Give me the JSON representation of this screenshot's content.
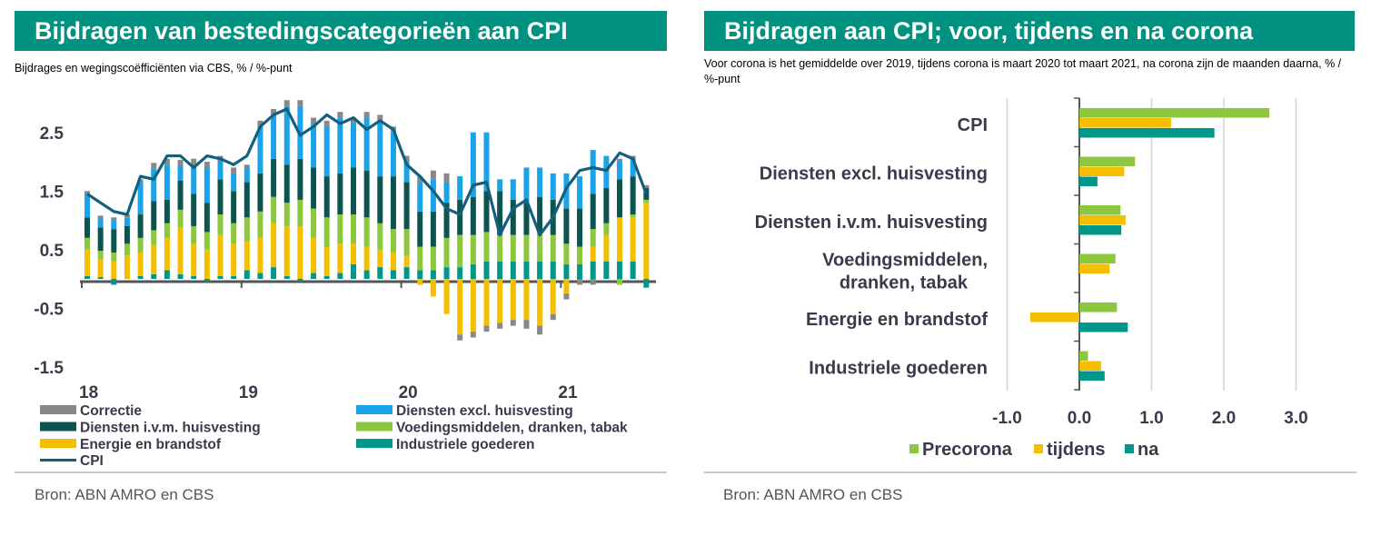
{
  "left": {
    "title": "Bijdragen van bestedingscategorieën aan CPI",
    "subtitle": "Bijdrages en wegingscoëfficiënten via CBS, % / %-punt",
    "source": "Bron: ABN AMRO en CBS"
  },
  "right": {
    "title": "Bijdragen aan CPI; voor, tijdens en na corona",
    "subtitle": "Voor corona is het gemiddelde over 2019, tijdens corona is maart 2020 tot maart 2021, na corona zijn de maanden daarna, % / %-punt",
    "source": "Bron: ABN AMRO en CBS"
  },
  "colors": {
    "brand": "#009180",
    "correctie": "#888888",
    "diensten_excl": "#1aa3e8",
    "diensten_ivm": "#0c5450",
    "voeding": "#8dc63f",
    "energie": "#f5bf00",
    "industrie": "#00968a",
    "cpi": "#135f80"
  },
  "chart_data": [
    {
      "type": "bar",
      "stacked": true,
      "title": "Bijdragen van bestedingscategorieën aan CPI",
      "xlabel": "",
      "ylabel": "",
      "ylim": [
        -1.5,
        2.9
      ],
      "yticks": [
        "2.5",
        "1.5",
        "0.5",
        "-0.5",
        "-1.5"
      ],
      "ytick_values": [
        2.5,
        1.5,
        0.5,
        -0.5,
        -1.5
      ],
      "xtick_labels": [
        "18",
        "19",
        "20",
        "21"
      ],
      "xtick_index": [
        0,
        12,
        24,
        36
      ],
      "x": [
        "jan-18",
        "feb-18",
        "mrt-18",
        "apr-18",
        "mei-18",
        "jun-18",
        "jul-18",
        "aug-18",
        "sep-18",
        "okt-18",
        "nov-18",
        "dec-18",
        "jan-19",
        "feb-19",
        "mrt-19",
        "apr-19",
        "mei-19",
        "jun-19",
        "jul-19",
        "aug-19",
        "sep-19",
        "okt-19",
        "nov-19",
        "dec-19",
        "jan-20",
        "feb-20",
        "mrt-20",
        "apr-20",
        "mei-20",
        "jun-20",
        "jul-20",
        "aug-20",
        "sep-20",
        "okt-20",
        "nov-20",
        "dec-20",
        "jan-21",
        "feb-21",
        "mrt-21",
        "apr-21",
        "mei-21",
        "jun-21",
        "jul-21"
      ],
      "series": [
        {
          "name": "Industriele goederen",
          "key": "industrie",
          "values": [
            0.05,
            0.03,
            -0.1,
            0.0,
            0.05,
            0.08,
            0.15,
            0.08,
            0.05,
            -0.05,
            0.05,
            0.05,
            0.15,
            0.1,
            0.2,
            0.05,
            -0.05,
            0.1,
            0.05,
            0.1,
            0.25,
            0.15,
            0.2,
            0.15,
            0.2,
            0.15,
            0.15,
            0.2,
            0.2,
            0.25,
            0.3,
            0.3,
            0.3,
            0.3,
            0.3,
            0.3,
            0.25,
            0.25,
            0.3,
            0.3,
            0.3,
            0.3,
            -0.15
          ]
        },
        {
          "name": "Energie en brandstof",
          "key": "energie",
          "values": [
            0.45,
            0.3,
            0.3,
            0.4,
            0.4,
            0.5,
            0.55,
            0.8,
            0.55,
            0.5,
            0.7,
            0.55,
            0.5,
            0.6,
            0.75,
            0.85,
            0.9,
            0.6,
            0.5,
            0.5,
            0.35,
            0.4,
            0.3,
            0.3,
            0.2,
            -0.1,
            -0.3,
            -0.6,
            -0.95,
            -0.9,
            -0.8,
            -0.75,
            -0.7,
            -0.7,
            -0.8,
            -0.6,
            -0.25,
            0.0,
            0.25,
            0.45,
            0.75,
            0.75,
            1.3
          ]
        },
        {
          "name": "Voedingsmiddelen, dranken, tabak",
          "key": "voeding",
          "values": [
            0.2,
            0.15,
            0.15,
            0.2,
            0.25,
            0.25,
            0.25,
            0.3,
            0.3,
            0.3,
            0.35,
            0.35,
            0.4,
            0.45,
            0.45,
            0.4,
            0.45,
            0.5,
            0.5,
            0.5,
            0.5,
            0.5,
            0.45,
            0.4,
            0.45,
            0.4,
            0.4,
            0.5,
            0.55,
            0.5,
            0.5,
            0.45,
            0.45,
            0.45,
            0.5,
            0.45,
            0.35,
            0.3,
            0.3,
            0.2,
            -0.1,
            0.05,
            0.05
          ]
        },
        {
          "name": "Diensten i.v.m. huisvesting",
          "key": "diensten_ivm",
          "values": [
            0.35,
            0.4,
            0.4,
            0.3,
            0.4,
            0.5,
            0.4,
            0.5,
            0.55,
            0.5,
            0.6,
            0.55,
            0.6,
            0.65,
            0.65,
            0.65,
            0.7,
            0.7,
            0.7,
            0.7,
            0.8,
            0.8,
            0.8,
            0.9,
            0.8,
            0.6,
            0.6,
            0.6,
            0.6,
            0.65,
            0.7,
            0.75,
            0.6,
            0.55,
            0.6,
            0.6,
            0.6,
            0.65,
            0.6,
            0.6,
            0.65,
            0.65,
            0.2
          ]
        },
        {
          "name": "Diensten excl. huisvesting",
          "key": "diensten_excl",
          "values": [
            0.4,
            0.15,
            0.15,
            0.15,
            0.55,
            0.55,
            0.6,
            0.25,
            0.5,
            0.6,
            0.3,
            0.3,
            0.25,
            0.8,
            0.75,
            1.0,
            0.9,
            0.75,
            0.85,
            0.95,
            0.75,
            0.9,
            0.95,
            0.75,
            0.35,
            0.5,
            0.55,
            0.35,
            0.4,
            1.1,
            1.0,
            0.2,
            0.35,
            0.6,
            0.5,
            0.45,
            0.6,
            0.55,
            0.75,
            0.55,
            0.3,
            0.3,
            0.0
          ]
        },
        {
          "name": "Correctie",
          "key": "correctie",
          "values": [
            0.05,
            0.05,
            0.05,
            0.05,
            0.05,
            0.1,
            0.1,
            0.1,
            0.1,
            0.1,
            0.1,
            0.1,
            0.05,
            0.1,
            0.1,
            0.1,
            0.1,
            0.1,
            0.1,
            0.1,
            0.1,
            0.1,
            0.1,
            0.1,
            0.1,
            0.1,
            0.15,
            0.15,
            -0.1,
            -0.1,
            -0.1,
            -0.1,
            -0.1,
            -0.15,
            -0.15,
            -0.1,
            -0.1,
            -0.1,
            -0.1,
            0.0,
            0.05,
            0.05,
            0.05
          ]
        }
      ],
      "line": {
        "name": "CPI",
        "key": "cpi",
        "values": [
          1.45,
          1.3,
          1.15,
          1.1,
          1.75,
          1.7,
          2.1,
          2.1,
          1.9,
          2.1,
          2.05,
          1.95,
          2.1,
          2.6,
          2.8,
          2.9,
          2.45,
          2.6,
          2.8,
          2.65,
          2.75,
          2.55,
          2.7,
          2.55,
          1.95,
          1.75,
          1.5,
          1.2,
          1.1,
          1.6,
          1.65,
          0.75,
          1.2,
          1.35,
          0.75,
          1.05,
          1.55,
          1.85,
          1.9,
          1.85,
          2.15,
          2.05,
          1.45
        ]
      }
    },
    {
      "type": "bar",
      "orientation": "horizontal",
      "title": "Bijdragen aan CPI; voor, tijdens en na corona",
      "xlabel": "",
      "ylabel": "",
      "xlim": [
        -1.0,
        3.0
      ],
      "xticks": [
        "-1.0",
        "0.0",
        "1.0",
        "2.0",
        "3.0"
      ],
      "xtick_values": [
        -1.0,
        0.0,
        1.0,
        2.0,
        3.0
      ],
      "categories": [
        "CPI",
        "Diensten excl. huisvesting",
        "Diensten i.v.m. huisvesting",
        "Voedingsmiddelen, dranken, tabak",
        "Energie en brandstof",
        "Industriele goederen"
      ],
      "category_lines": [
        [
          "CPI"
        ],
        [
          "Diensten excl. huisvesting"
        ],
        [
          "Diensten i.v.m. huisvesting"
        ],
        [
          "Voedingsmiddelen,",
          "dranken, tabak"
        ],
        [
          "Energie en brandstof"
        ],
        [
          "Industriele goederen"
        ]
      ],
      "series": [
        {
          "name": "Precorona",
          "key": "voeding",
          "values": [
            2.63,
            0.77,
            0.57,
            0.5,
            0.52,
            0.12
          ]
        },
        {
          "name": "tijdens",
          "key": "energie",
          "values": [
            1.27,
            0.62,
            0.64,
            0.42,
            -0.68,
            0.3
          ]
        },
        {
          "name": "na",
          "key": "industrie",
          "values": [
            1.87,
            0.25,
            0.58,
            0.0,
            0.67,
            0.35
          ]
        }
      ],
      "legend_position": "bottom"
    }
  ]
}
